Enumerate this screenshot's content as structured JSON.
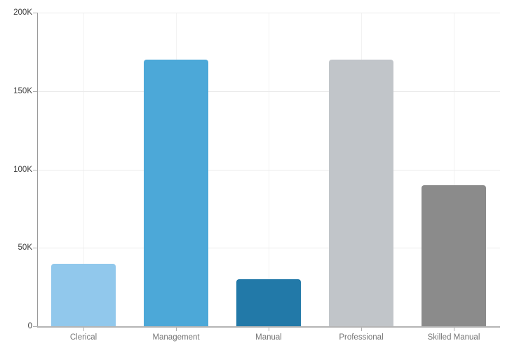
{
  "chart_data": {
    "type": "bar",
    "title": "",
    "xlabel": "",
    "ylabel": "",
    "categories": [
      "Clerical",
      "Management",
      "Manual",
      "Professional",
      "Skilled Manual"
    ],
    "values": [
      40000,
      170000,
      30000,
      170000,
      90000
    ],
    "bar_colors": [
      "#91C8EC",
      "#4CA8D8",
      "#2279A8",
      "#C1C5C9",
      "#8B8B8B"
    ],
    "ylim": [
      0,
      200000
    ],
    "y_ticks": [
      0,
      50000,
      100000,
      150000,
      200000
    ],
    "y_tick_labels": [
      "0",
      "50K",
      "100K",
      "150K",
      "200K"
    ],
    "grid": true,
    "legend": "none"
  },
  "colors": {
    "background": "#ffffff",
    "y_axis_line": "#9a9a9a",
    "x_axis_line": "#b5b5b5",
    "tick_mark": "#b0b0b0",
    "gridline_h": "#ebebeb",
    "gridline_v": "#f2f2f2",
    "y_label_text": "#3f3f3f",
    "x_label_text": "#767676"
  }
}
